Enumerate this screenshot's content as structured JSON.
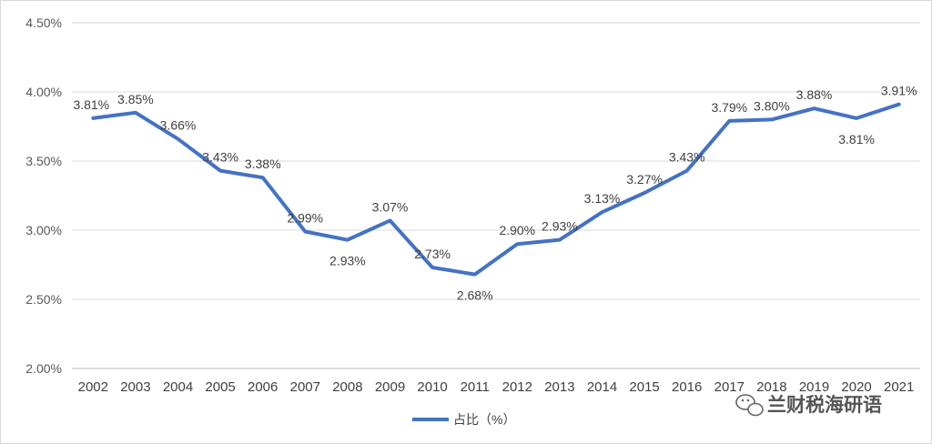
{
  "chart_data": {
    "type": "line",
    "categories": [
      "2002",
      "2003",
      "2004",
      "2005",
      "2006",
      "2007",
      "2008",
      "2009",
      "2010",
      "2011",
      "2012",
      "2013",
      "2014",
      "2015",
      "2016",
      "2017",
      "2018",
      "2019",
      "2020",
      "2021"
    ],
    "series": [
      {
        "name": "占比（%）",
        "values": [
          3.81,
          3.85,
          3.66,
          3.43,
          3.38,
          2.99,
          2.93,
          3.07,
          2.73,
          2.68,
          2.9,
          2.93,
          3.13,
          3.27,
          3.43,
          3.79,
          3.8,
          3.88,
          3.81,
          3.91
        ],
        "labels": [
          "3.81%",
          "3.85%",
          "3.66%",
          "3.43%",
          "3.38%",
          "2.99%",
          "2.93%",
          "3.07%",
          "2.73%",
          "2.68%",
          "2.90%",
          "2.93%",
          "3.13%",
          "3.27%",
          "3.43%",
          "3.79%",
          "3.80%",
          "3.88%",
          "3.81%",
          "3.91%"
        ],
        "color": "#4472c4"
      }
    ],
    "ylim": [
      2.0,
      4.5
    ],
    "yticks": [
      "2.00%",
      "2.50%",
      "3.00%",
      "3.50%",
      "4.00%",
      "4.50%"
    ],
    "grid": true,
    "legend_position": "bottom"
  },
  "watermark": {
    "text": "兰财税海研语",
    "icon": "wechat-icon"
  }
}
